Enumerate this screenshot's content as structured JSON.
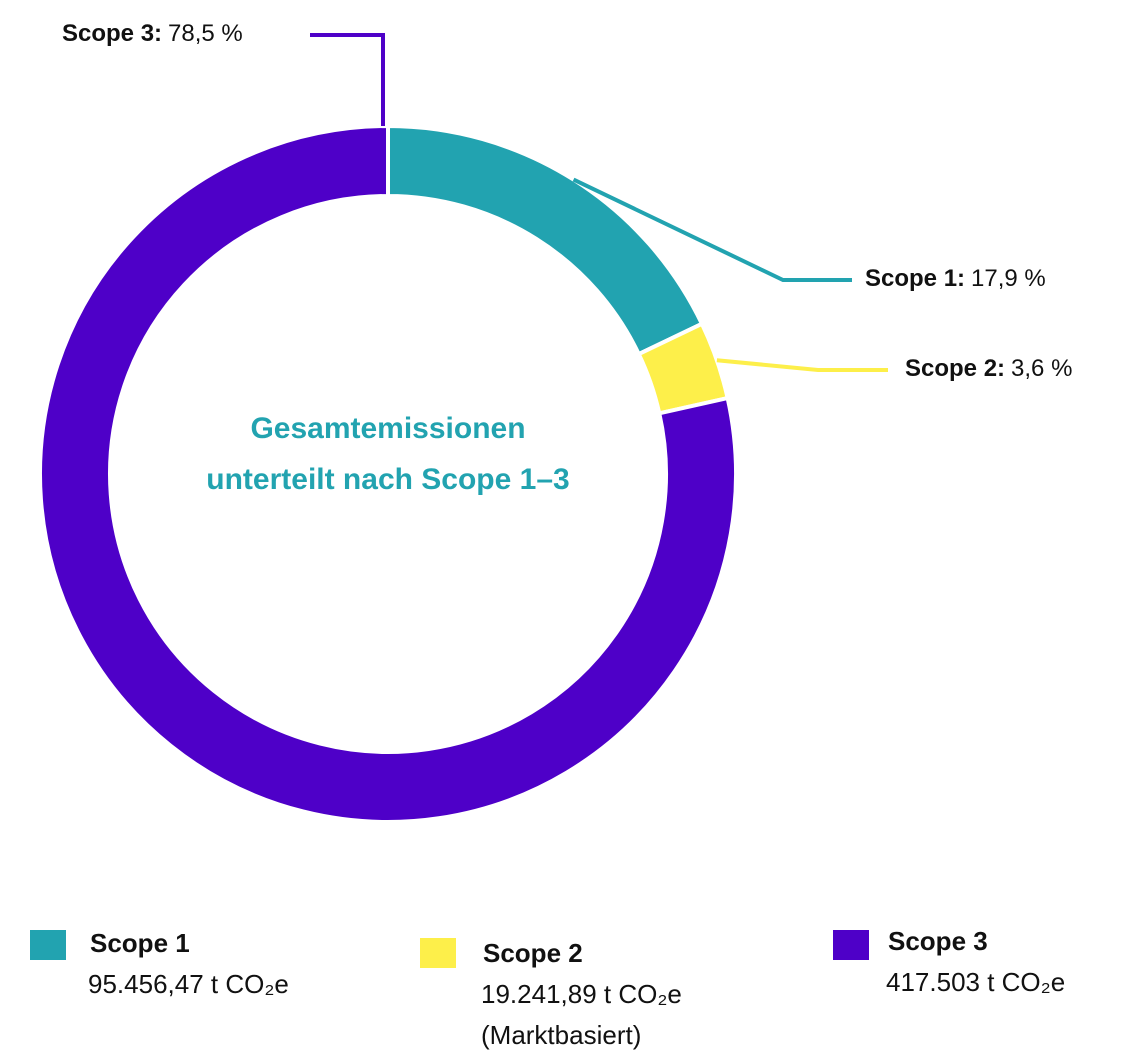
{
  "chart_data": {
    "type": "donut",
    "title": "Gesamtemissionen unterteilt nach Scope 1–3",
    "categories": [
      "Scope 1",
      "Scope 2",
      "Scope 3"
    ],
    "slice_labels": [
      "Scope 1:",
      "Scope 2:",
      "Scope 3:"
    ],
    "values": [
      17.9,
      3.6,
      78.5
    ],
    "value_labels": [
      "17,9 %",
      "3,6 %",
      "78,5 %"
    ],
    "colors": [
      "#22a3b0",
      "#fdef4a",
      "#4e00c8"
    ],
    "legend_details": [
      [
        "95.456,47 t CO₂e"
      ],
      [
        "19.241,89 t CO₂e",
        "(Marktbasiert)"
      ],
      [
        "417.503 t CO₂e"
      ]
    ]
  }
}
